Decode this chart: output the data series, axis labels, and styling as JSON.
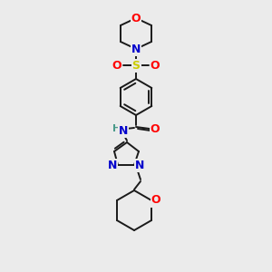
{
  "background_color": "#ebebeb",
  "bond_color": "#1a1a1a",
  "atom_colors": {
    "O": "#ff0000",
    "N": "#0000cc",
    "S": "#cccc00",
    "C": "#1a1a1a",
    "H": "#4a9a8a"
  },
  "figsize": [
    3.0,
    3.0
  ],
  "dpi": 100
}
